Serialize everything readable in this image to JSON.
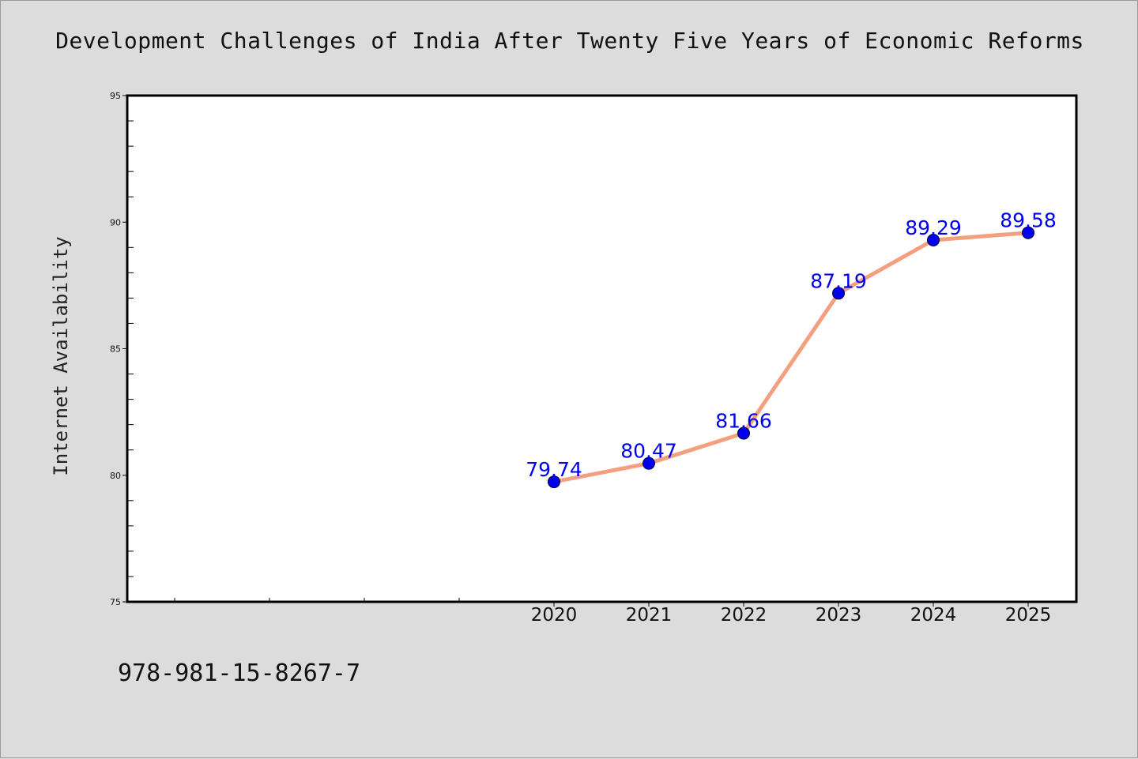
{
  "chart_data": {
    "type": "line",
    "title": "Development Challenges of India After Twenty Five Years of Economic Reforms",
    "ylabel": "Internet Availability",
    "xlabel": "",
    "x": [
      "2020",
      "2021",
      "2022",
      "2023",
      "2024",
      "2025"
    ],
    "series": [
      {
        "values": [
          79.74,
          80.47,
          81.66,
          87.19,
          89.29,
          89.58
        ],
        "data_labels": [
          "79.74",
          "80.47",
          "81.66",
          "87.19",
          "89.29",
          "89.58"
        ]
      }
    ],
    "ylim": [
      75,
      95
    ],
    "yticks": [
      "75",
      "80",
      "85",
      "90",
      "95"
    ],
    "grid": false,
    "line_color": "#f4a080",
    "marker_color": "#0000ee",
    "label_color": "#0000ee"
  },
  "footnote": "978-981-15-8267-7"
}
